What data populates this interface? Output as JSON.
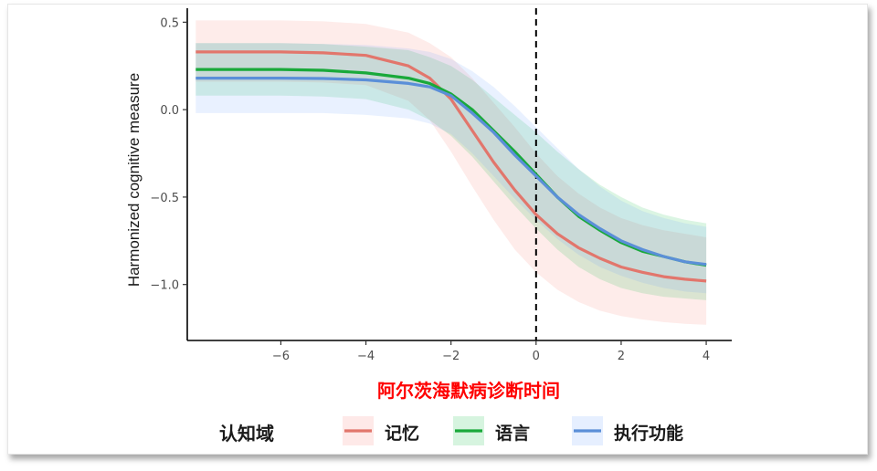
{
  "chart_data": {
    "type": "line",
    "xlabel": "阿尔茨海默病诊断时间",
    "ylabel": "Harmonized cognitive measure",
    "xlim": [
      -8.2,
      4.6
    ],
    "ylim": [
      -1.32,
      0.58
    ],
    "x_ticks": [
      -6,
      -4,
      -2,
      0,
      2,
      4
    ],
    "x_tick_labels": [
      "−6",
      "−4",
      "−2",
      "0",
      "2",
      "4"
    ],
    "y_ticks": [
      0.5,
      0.0,
      -0.5,
      -1.0
    ],
    "y_tick_labels": [
      "0.5",
      "0.0",
      "−0.5",
      "−1.0"
    ],
    "vline": 0,
    "grid": false,
    "legend": {
      "title": "认知域",
      "placement": "bottom"
    },
    "x": [
      -8,
      -7,
      -6,
      -5,
      -4,
      -3,
      -2.5,
      -2,
      -1.5,
      -1,
      -0.5,
      0,
      0.5,
      1,
      1.5,
      2,
      2.5,
      3,
      3.5,
      4
    ],
    "series": [
      {
        "name": "记忆",
        "color": "#e2766c",
        "band_color": "#f8766d",
        "values": [
          0.33,
          0.33,
          0.33,
          0.325,
          0.31,
          0.25,
          0.18,
          0.06,
          -0.12,
          -0.3,
          -0.46,
          -0.6,
          -0.71,
          -0.79,
          -0.85,
          -0.9,
          -0.93,
          -0.955,
          -0.97,
          -0.98
        ],
        "lower": [
          0.16,
          0.16,
          0.16,
          0.155,
          0.14,
          0.05,
          -0.06,
          -0.24,
          -0.44,
          -0.63,
          -0.8,
          -0.93,
          -1.03,
          -1.1,
          -1.15,
          -1.18,
          -1.2,
          -1.215,
          -1.225,
          -1.23
        ],
        "upper": [
          0.51,
          0.51,
          0.51,
          0.505,
          0.49,
          0.44,
          0.38,
          0.3,
          0.18,
          0.04,
          -0.1,
          -0.25,
          -0.38,
          -0.48,
          -0.56,
          -0.62,
          -0.66,
          -0.69,
          -0.71,
          -0.73
        ]
      },
      {
        "name": "语言",
        "color": "#19a93a",
        "band_color": "#00ba38",
        "values": [
          0.23,
          0.23,
          0.23,
          0.225,
          0.21,
          0.18,
          0.15,
          0.09,
          0.0,
          -0.12,
          -0.24,
          -0.37,
          -0.5,
          -0.61,
          -0.69,
          -0.76,
          -0.81,
          -0.84,
          -0.87,
          -0.89
        ],
        "lower": [
          0.08,
          0.08,
          0.08,
          0.075,
          0.06,
          0.0,
          -0.06,
          -0.15,
          -0.27,
          -0.41,
          -0.55,
          -0.68,
          -0.8,
          -0.9,
          -0.97,
          -1.02,
          -1.05,
          -1.07,
          -1.08,
          -1.09
        ],
        "upper": [
          0.38,
          0.38,
          0.38,
          0.375,
          0.36,
          0.34,
          0.3,
          0.25,
          0.17,
          0.07,
          -0.03,
          -0.13,
          -0.24,
          -0.34,
          -0.43,
          -0.5,
          -0.56,
          -0.6,
          -0.63,
          -0.65
        ]
      },
      {
        "name": "执行功能",
        "color": "#5b8fd8",
        "band_color": "#619cff",
        "values": [
          0.18,
          0.18,
          0.18,
          0.178,
          0.17,
          0.15,
          0.13,
          0.08,
          -0.02,
          -0.13,
          -0.26,
          -0.38,
          -0.5,
          -0.6,
          -0.68,
          -0.75,
          -0.8,
          -0.84,
          -0.87,
          -0.885
        ],
        "lower": [
          -0.02,
          -0.02,
          -0.02,
          -0.02,
          -0.03,
          -0.05,
          -0.08,
          -0.14,
          -0.25,
          -0.38,
          -0.51,
          -0.63,
          -0.74,
          -0.83,
          -0.9,
          -0.95,
          -0.99,
          -1.02,
          -1.04,
          -1.05
        ],
        "upper": [
          0.38,
          0.38,
          0.38,
          0.376,
          0.37,
          0.35,
          0.33,
          0.29,
          0.22,
          0.13,
          0.02,
          -0.1,
          -0.22,
          -0.34,
          -0.44,
          -0.52,
          -0.58,
          -0.62,
          -0.65,
          -0.67
        ]
      }
    ]
  }
}
